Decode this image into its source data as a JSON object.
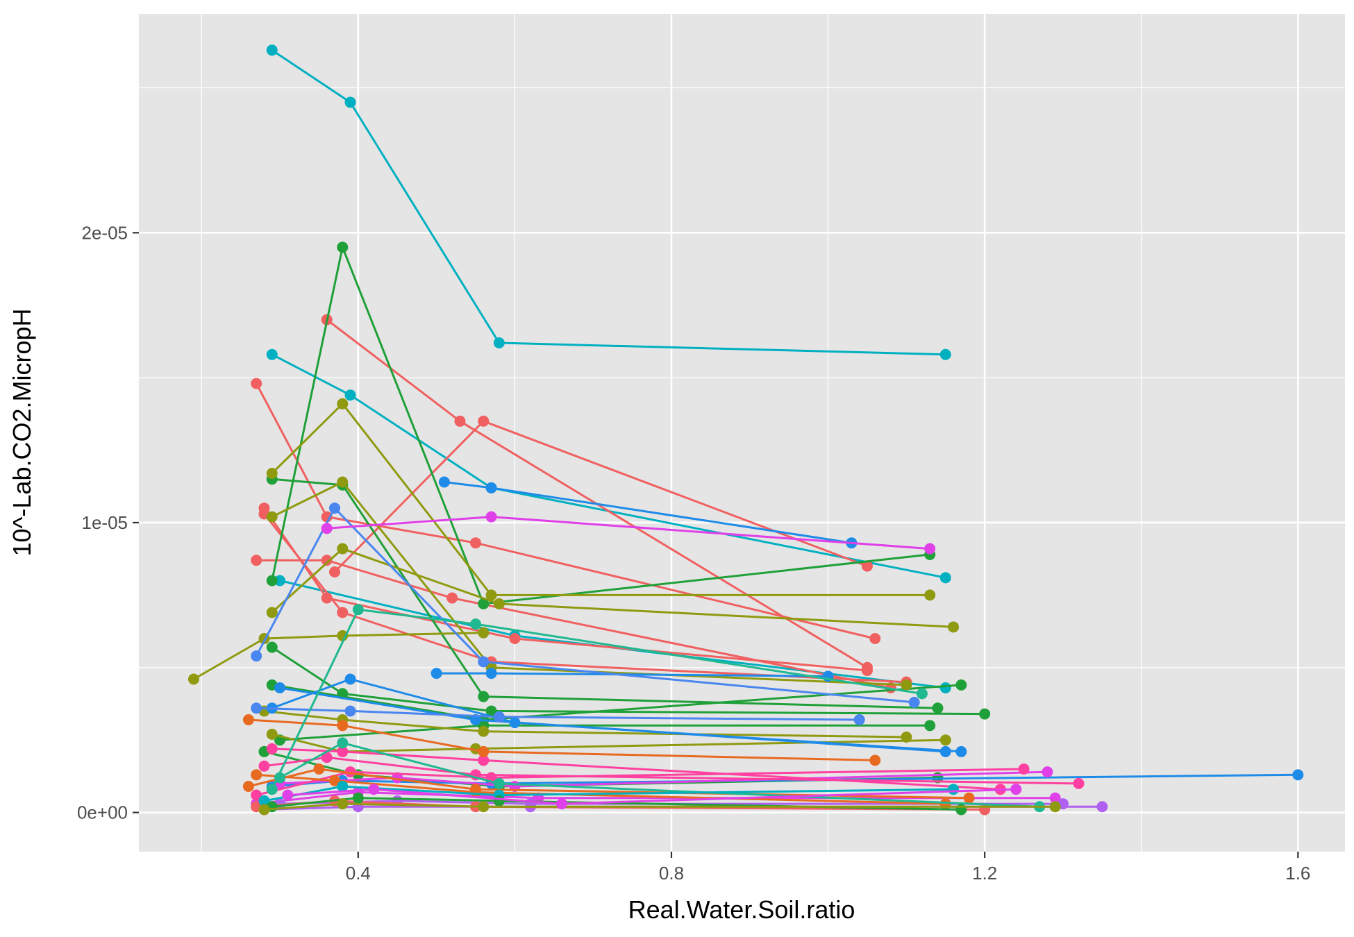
{
  "chart_data": {
    "type": "line",
    "title": "",
    "xlabel": "Real.Water.Soil.ratio",
    "ylabel": "10^-Lab.CO2.MicropH",
    "xlim": [
      0.12,
      1.66
    ],
    "ylim": [
      -1.35e-06,
      2.755e-05
    ],
    "x_ticks": [
      0.4,
      0.8,
      1.2,
      1.6
    ],
    "x_tick_labels": [
      "0.4",
      "0.8",
      "1.2",
      "1.6"
    ],
    "y_ticks": [
      0,
      1e-05,
      2e-05
    ],
    "y_tick_labels": [
      "0e+00",
      "1e-05",
      "2e-05"
    ],
    "grid": true,
    "legend": "none",
    "series": [
      {
        "color": "#00b0c0",
        "points": [
          [
            0.29,
            2.63e-05
          ],
          [
            0.39,
            2.45e-05
          ],
          [
            0.58,
            1.62e-05
          ],
          [
            1.15,
            1.58e-05
          ]
        ]
      },
      {
        "color": "#00b0c0",
        "points": [
          [
            0.29,
            1.58e-05
          ],
          [
            0.39,
            1.44e-05
          ],
          [
            0.57,
            1.12e-05
          ],
          [
            1.15,
            8.1e-06
          ]
        ]
      },
      {
        "color": "#00b0c0",
        "points": [
          [
            0.3,
            8e-06
          ],
          [
            0.6,
            6.1e-06
          ],
          [
            1.15,
            4.3e-06
          ]
        ]
      },
      {
        "color": "#f06060",
        "points": [
          [
            0.36,
            1.7e-05
          ],
          [
            0.53,
            1.35e-05
          ],
          [
            1.05,
            5e-06
          ]
        ]
      },
      {
        "color": "#f06060",
        "points": [
          [
            0.27,
            1.48e-05
          ],
          [
            0.36,
            1.02e-05
          ],
          [
            0.55,
            9.3e-06
          ],
          [
            1.06,
            6e-06
          ]
        ]
      },
      {
        "color": "#f06060",
        "points": [
          [
            0.37,
            8.3e-06
          ],
          [
            0.56,
            1.35e-05
          ],
          [
            1.05,
            8.5e-06
          ]
        ]
      },
      {
        "color": "#f06060",
        "points": [
          [
            0.27,
            8.7e-06
          ],
          [
            0.36,
            8.7e-06
          ],
          [
            0.52,
            7.4e-06
          ],
          [
            1.08,
            4.3e-06
          ]
        ]
      },
      {
        "color": "#f06060",
        "points": [
          [
            0.28,
            1.03e-05
          ],
          [
            0.38,
            6.9e-06
          ],
          [
            0.57,
            5.2e-06
          ],
          [
            1.1,
            4.5e-06
          ]
        ]
      },
      {
        "color": "#f06060",
        "points": [
          [
            0.28,
            1.05e-05
          ],
          [
            0.36,
            7.4e-06
          ],
          [
            0.6,
            6e-06
          ],
          [
            1.05,
            4.9e-06
          ]
        ]
      },
      {
        "color": "#1fa038",
        "points": [
          [
            0.29,
            8e-06
          ],
          [
            0.38,
            1.95e-05
          ],
          [
            0.56,
            7.2e-06
          ],
          [
            1.13,
            8.9e-06
          ]
        ]
      },
      {
        "color": "#1fa038",
        "points": [
          [
            0.29,
            1.15e-05
          ],
          [
            0.38,
            1.13e-05
          ],
          [
            0.56,
            4e-06
          ],
          [
            1.14,
            3.6e-06
          ]
        ]
      },
      {
        "color": "#1fa038",
        "points": [
          [
            0.29,
            5.7e-06
          ],
          [
            0.38,
            4.1e-06
          ],
          [
            0.57,
            3.5e-06
          ],
          [
            1.2,
            3.4e-06
          ]
        ]
      },
      {
        "color": "#1fa038",
        "points": [
          [
            0.3,
            2.5e-06
          ],
          [
            0.56,
            3e-06
          ],
          [
            1.13,
            3e-06
          ]
        ]
      },
      {
        "color": "#1fa038",
        "points": [
          [
            0.29,
            4.4e-06
          ],
          [
            0.56,
            3.2e-06
          ],
          [
            1.17,
            4.4e-06
          ]
        ]
      },
      {
        "color": "#1fa038",
        "points": [
          [
            0.28,
            2.1e-06
          ],
          [
            0.4,
            1.3e-06
          ],
          [
            0.58,
            9e-07
          ],
          [
            1.14,
            1.2e-06
          ]
        ]
      },
      {
        "color": "#8f9a10",
        "points": [
          [
            0.29,
            1.17e-05
          ],
          [
            0.38,
            1.41e-05
          ],
          [
            0.57,
            7.5e-06
          ],
          [
            1.13,
            7.5e-06
          ]
        ]
      },
      {
        "color": "#8f9a10",
        "points": [
          [
            0.29,
            6.9e-06
          ],
          [
            0.38,
            9.1e-06
          ],
          [
            0.58,
            7.2e-06
          ],
          [
            1.16,
            6.4e-06
          ]
        ]
      },
      {
        "color": "#8f9a10",
        "points": [
          [
            0.19,
            4.6e-06
          ],
          [
            0.28,
            6e-06
          ],
          [
            0.38,
            6.1e-06
          ],
          [
            0.56,
            6.2e-06
          ]
        ]
      },
      {
        "color": "#8f9a10",
        "points": [
          [
            0.29,
            1.02e-05
          ],
          [
            0.38,
            1.14e-05
          ],
          [
            0.57,
            5e-06
          ],
          [
            1.1,
            4.4e-06
          ]
        ]
      },
      {
        "color": "#8f9a10",
        "points": [
          [
            0.28,
            3.5e-06
          ],
          [
            0.38,
            3.2e-06
          ],
          [
            0.56,
            2.8e-06
          ],
          [
            1.1,
            2.6e-06
          ]
        ]
      },
      {
        "color": "#8f9a10",
        "points": [
          [
            0.29,
            2.7e-06
          ],
          [
            0.38,
            2.1e-06
          ],
          [
            0.55,
            2.2e-06
          ],
          [
            1.15,
            2.5e-06
          ]
        ]
      },
      {
        "color": "#1e8be8",
        "points": [
          [
            0.51,
            1.14e-05
          ],
          [
            0.57,
            1.12e-05
          ],
          [
            1.03,
            9.3e-06
          ]
        ]
      },
      {
        "color": "#1e8be8",
        "points": [
          [
            0.5,
            4.8e-06
          ],
          [
            0.57,
            4.8e-06
          ],
          [
            1.0,
            4.7e-06
          ]
        ]
      },
      {
        "color": "#1e8be8",
        "points": [
          [
            0.29,
            3.6e-06
          ],
          [
            0.39,
            4.6e-06
          ],
          [
            0.6,
            3.1e-06
          ],
          [
            1.17,
            2.1e-06
          ]
        ]
      },
      {
        "color": "#1e8be8",
        "points": [
          [
            0.29,
            9e-07
          ],
          [
            0.38,
            1.1e-06
          ],
          [
            0.57,
            1e-06
          ],
          [
            1.6,
            1.3e-06
          ]
        ]
      },
      {
        "color": "#1e8be8",
        "points": [
          [
            0.3,
            4.3e-06
          ],
          [
            0.55,
            3.2e-06
          ],
          [
            1.15,
            2.1e-06
          ]
        ]
      },
      {
        "color": "#4a86f0",
        "points": [
          [
            0.27,
            5.4e-06
          ],
          [
            0.37,
            1.05e-05
          ],
          [
            0.56,
            5.2e-06
          ],
          [
            1.11,
            3.8e-06
          ]
        ]
      },
      {
        "color": "#4a86f0",
        "points": [
          [
            0.27,
            3.6e-06
          ],
          [
            0.39,
            3.5e-06
          ],
          [
            0.58,
            3.3e-06
          ],
          [
            1.04,
            3.2e-06
          ]
        ]
      },
      {
        "color": "#e040e8",
        "points": [
          [
            0.36,
            9.8e-06
          ],
          [
            0.57,
            1.02e-05
          ],
          [
            1.13,
            9.1e-06
          ]
        ]
      },
      {
        "color": "#e040e8",
        "points": [
          [
            0.27,
            3e-07
          ],
          [
            0.4,
            7e-07
          ],
          [
            0.63,
            5e-07
          ],
          [
            1.29,
            5e-07
          ]
        ]
      },
      {
        "color": "#e040e8",
        "points": [
          [
            0.3,
            1e-06
          ],
          [
            0.45,
            1.2e-06
          ],
          [
            0.6,
            9e-07
          ],
          [
            1.28,
            1.4e-06
          ]
        ]
      },
      {
        "color": "#b060f0",
        "points": [
          [
            0.28,
            1e-07
          ],
          [
            0.4,
            2e-07
          ],
          [
            0.62,
            2e-07
          ],
          [
            1.35,
            2e-07
          ]
        ]
      },
      {
        "color": "#b060f0",
        "points": [
          [
            0.3,
            3e-07
          ],
          [
            0.45,
            4e-07
          ],
          [
            0.62,
            3e-07
          ],
          [
            1.3,
            3e-07
          ]
        ]
      },
      {
        "color": "#ff40a0",
        "points": [
          [
            0.27,
            6e-07
          ],
          [
            0.39,
            1.4e-06
          ],
          [
            0.57,
            1.2e-06
          ],
          [
            1.25,
            1.5e-06
          ]
        ]
      },
      {
        "color": "#ff40a0",
        "points": [
          [
            0.28,
            1.6e-06
          ],
          [
            0.36,
            1.9e-06
          ],
          [
            0.55,
            1.3e-06
          ],
          [
            1.32,
            1e-06
          ]
        ]
      },
      {
        "color": "#ff40a0",
        "points": [
          [
            0.29,
            2.2e-06
          ],
          [
            0.38,
            2.1e-06
          ],
          [
            0.56,
            1.8e-06
          ],
          [
            1.22,
            8e-07
          ]
        ]
      },
      {
        "color": "#e86a20",
        "points": [
          [
            0.26,
            9e-07
          ],
          [
            0.35,
            1.5e-06
          ],
          [
            0.55,
            8e-07
          ],
          [
            1.18,
            5e-07
          ]
        ]
      },
      {
        "color": "#e86a20",
        "points": [
          [
            0.26,
            3.2e-06
          ],
          [
            0.38,
            3e-06
          ],
          [
            0.56,
            2.1e-06
          ],
          [
            1.06,
            1.8e-06
          ]
        ]
      },
      {
        "color": "#e86a20",
        "points": [
          [
            0.27,
            1.3e-06
          ],
          [
            0.37,
            1.1e-06
          ],
          [
            0.55,
            7e-07
          ],
          [
            1.15,
            3e-07
          ]
        ]
      },
      {
        "color": "#f06060",
        "points": [
          [
            0.27,
            2e-07
          ],
          [
            0.37,
            4e-07
          ],
          [
            0.55,
            2e-07
          ],
          [
            1.2,
            1e-07
          ]
        ]
      },
      {
        "color": "#20b890",
        "points": [
          [
            0.29,
            8e-07
          ],
          [
            0.4,
            7e-06
          ],
          [
            0.55,
            6.5e-06
          ],
          [
            1.12,
            4.1e-06
          ]
        ]
      },
      {
        "color": "#20b890",
        "points": [
          [
            0.3,
            1.2e-06
          ],
          [
            0.38,
            2.4e-06
          ],
          [
            0.58,
            1e-06
          ],
          [
            1.27,
            2e-07
          ]
        ]
      },
      {
        "color": "#00b0c0",
        "points": [
          [
            0.28,
            4e-07
          ],
          [
            0.38,
            9e-07
          ],
          [
            0.58,
            6e-07
          ],
          [
            1.16,
            8e-07
          ]
        ]
      },
      {
        "color": "#1fa038",
        "points": [
          [
            0.29,
            2e-07
          ],
          [
            0.4,
            5e-07
          ],
          [
            0.58,
            4e-07
          ],
          [
            1.17,
            1e-07
          ]
        ]
      },
      {
        "color": "#8f9a10",
        "points": [
          [
            0.28,
            1e-07
          ],
          [
            0.38,
            3e-07
          ],
          [
            0.56,
            2e-07
          ],
          [
            1.29,
            2e-07
          ]
        ]
      },
      {
        "color": "#e040e8",
        "points": [
          [
            0.31,
            6e-07
          ],
          [
            0.42,
            8e-07
          ],
          [
            0.66,
            3e-07
          ],
          [
            1.24,
            8e-07
          ]
        ]
      }
    ]
  }
}
